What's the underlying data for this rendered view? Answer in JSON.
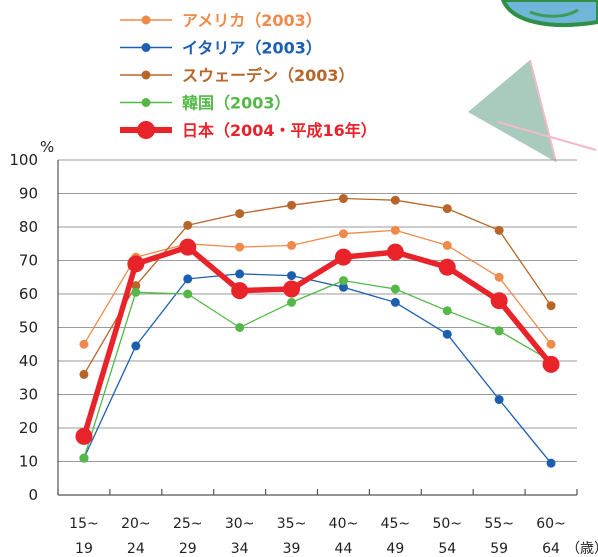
{
  "chart_data": {
    "type": "line",
    "ylabel": "%",
    "xunit": "（歳）",
    "ylim": [
      0,
      100
    ],
    "yticks": [
      0,
      10,
      20,
      30,
      40,
      50,
      60,
      70,
      80,
      90,
      100
    ],
    "categories": [
      {
        "top": "15~",
        "bottom": "19"
      },
      {
        "top": "20~",
        "bottom": "24"
      },
      {
        "top": "25~",
        "bottom": "29"
      },
      {
        "top": "30~",
        "bottom": "34"
      },
      {
        "top": "35~",
        "bottom": "39"
      },
      {
        "top": "40~",
        "bottom": "44"
      },
      {
        "top": "45~",
        "bottom": "49"
      },
      {
        "top": "50~",
        "bottom": "54"
      },
      {
        "top": "55~",
        "bottom": "59"
      },
      {
        "top": "60~",
        "bottom": "64"
      }
    ],
    "series": [
      {
        "name": "アメリカ（2003）",
        "color": "#f08a4b",
        "values": [
          45,
          71,
          75,
          74,
          74.5,
          78,
          79,
          74.5,
          65,
          45
        ]
      },
      {
        "name": "イタリア（2003）",
        "color": "#1c5fb0",
        "values": [
          11,
          44.5,
          64.5,
          66,
          65.5,
          62,
          57.5,
          48,
          28.5,
          9.5
        ]
      },
      {
        "name": "スウェーデン（2003）",
        "color": "#b8652a",
        "values": [
          36,
          62.5,
          80.5,
          84,
          86.5,
          88.5,
          88,
          85.5,
          79,
          56.5
        ]
      },
      {
        "name": "韓国（2003）",
        "color": "#54b848",
        "values": [
          11,
          60.5,
          60,
          50,
          57.5,
          64,
          61.5,
          55,
          49,
          40
        ]
      },
      {
        "name": "日本（2004・平成16年）",
        "color": "#e8232a",
        "values": [
          17.5,
          69,
          74,
          61,
          61.5,
          71,
          72.5,
          68,
          58,
          39
        ]
      }
    ],
    "grid": "horizontal",
    "legend_position": "top"
  }
}
